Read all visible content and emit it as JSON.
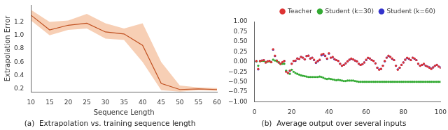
{
  "chart_data": [
    {
      "type": "line",
      "title": "(a)  Extrapolation vs. training sequence length",
      "xlabel": "Sequence Length",
      "ylabel": "Extrapolation Error",
      "x": [
        10,
        15,
        20,
        25,
        30,
        35,
        40,
        45,
        50,
        55,
        60
      ],
      "series": [
        {
          "type": "line",
          "color": "#c05020",
          "values": [
            1.3,
            1.08,
            1.15,
            1.18,
            1.05,
            1.02,
            0.85,
            0.28,
            0.19,
            0.2,
            0.19
          ]
        },
        {
          "type": "area",
          "color": "#f0a878",
          "upper": [
            1.38,
            1.2,
            1.22,
            1.32,
            1.18,
            1.1,
            1.18,
            0.6,
            0.25,
            0.22,
            0.21
          ],
          "lower": [
            1.22,
            1.0,
            1.08,
            1.1,
            0.95,
            0.93,
            0.6,
            0.18,
            0.16,
            0.18,
            0.17
          ]
        }
      ],
      "xlim": [
        10,
        60
      ],
      "xticks": [
        10,
        15,
        20,
        25,
        30,
        35,
        40,
        45,
        50,
        55,
        60
      ],
      "ylim": [
        0.15,
        1.45
      ],
      "yticks": [
        0.2,
        0.4,
        0.6,
        0.8,
        {
          "value": 1.0,
          "label": "1.0"
        },
        1.2
      ],
      "grid": false,
      "legend": false
    },
    {
      "type": "scatter",
      "title": "(b)  Average output over several inputs",
      "x": [
        1,
        2,
        3,
        4,
        5,
        6,
        7,
        8,
        9,
        10,
        11,
        12,
        13,
        14,
        15,
        16,
        17,
        18,
        19,
        20,
        21,
        22,
        23,
        24,
        25,
        26,
        27,
        28,
        29,
        30,
        31,
        32,
        33,
        34,
        35,
        36,
        37,
        38,
        39,
        40,
        41,
        42,
        43,
        44,
        45,
        46,
        47,
        48,
        49,
        50,
        51,
        52,
        53,
        54,
        55,
        56,
        57,
        58,
        59,
        60,
        61,
        62,
        63,
        64,
        65,
        66,
        67,
        68,
        69,
        70,
        71,
        72,
        73,
        74,
        75,
        76,
        77,
        78,
        79,
        80,
        81,
        82,
        83,
        84,
        85,
        86,
        87,
        88,
        89,
        90,
        91,
        92,
        93,
        94,
        95,
        96,
        97,
        98,
        99,
        100
      ],
      "series": [
        {
          "name": "Teacher",
          "color": "#dd3333",
          "marker": "dot",
          "values": [
            0.02,
            -0.18,
            0.02,
            0.03,
            0.04,
            -0.02,
            0.01,
            0.02,
            -0.01,
            0.31,
            0.15,
            0.03,
            -0.02,
            -0.05,
            -0.01,
            0.02,
            -0.25,
            -0.28,
            -0.22,
            -0.05,
            0.02,
            0.03,
            0.08,
            0.07,
            0.12,
            0.1,
            0.06,
            0.14,
            0.15,
            0.08,
            0.1,
            0.05,
            -0.02,
            0.02,
            0.05,
            0.18,
            0.2,
            0.15,
            0.08,
            0.21,
            0.1,
            0.12,
            0.07,
            0.04,
            0.02,
            -0.05,
            -0.1,
            -0.08,
            -0.04,
            0.01,
            0.05,
            0.08,
            0.06,
            0.03,
            0.01,
            -0.05,
            -0.08,
            -0.06,
            -0.02,
            0.05,
            0.1,
            0.08,
            0.04,
            0.02,
            -0.04,
            -0.15,
            -0.2,
            -0.18,
            -0.1,
            0.02,
            0.1,
            0.15,
            0.12,
            0.08,
            0.04,
            -0.1,
            -0.2,
            -0.15,
            -0.08,
            -0.02,
            0.05,
            0.1,
            0.08,
            0.04,
            0.1,
            0.08,
            0.04,
            -0.05,
            -0.1,
            -0.08,
            -0.05,
            -0.1,
            -0.12,
            -0.15,
            -0.18,
            -0.14,
            -0.1,
            -0.08,
            -0.12,
            -0.15
          ]
        },
        {
          "name": "Student (k=30)",
          "color": "#33aa33",
          "marker": "dot",
          "values": [
            0.01,
            -0.1,
            0.01,
            0.02,
            0.02,
            -0.01,
            0.0,
            0.01,
            -0.01,
            0.05,
            0.03,
            0.01,
            -0.01,
            -0.06,
            -0.05,
            -0.05,
            -0.22,
            -0.28,
            -0.3,
            -0.2,
            -0.25,
            -0.28,
            -0.3,
            -0.32,
            -0.34,
            -0.35,
            -0.36,
            -0.37,
            -0.38,
            -0.38,
            -0.38,
            -0.38,
            -0.38,
            -0.38,
            -0.37,
            -0.38,
            -0.4,
            -0.42,
            -0.43,
            -0.42,
            -0.43,
            -0.44,
            -0.45,
            -0.46,
            -0.45,
            -0.46,
            -0.47,
            -0.48,
            -0.48,
            -0.47,
            -0.47,
            -0.47,
            -0.47,
            -0.48,
            -0.49,
            -0.5,
            -0.5,
            -0.5,
            -0.5,
            -0.5,
            -0.5,
            -0.5,
            -0.5,
            -0.5,
            -0.5,
            -0.5,
            -0.5,
            -0.5,
            -0.5,
            -0.5,
            -0.5,
            -0.5,
            -0.5,
            -0.5,
            -0.5,
            -0.5,
            -0.5,
            -0.5,
            -0.5,
            -0.5,
            -0.5,
            -0.5,
            -0.5,
            -0.5,
            -0.5,
            -0.5,
            -0.5,
            -0.5,
            -0.5,
            -0.5,
            -0.5,
            -0.5,
            -0.5,
            -0.5,
            -0.5,
            -0.5,
            -0.5,
            -0.5,
            -0.5,
            -0.5
          ]
        },
        {
          "name": "Student (k=60)",
          "color": "#3333cc",
          "marker": "dot",
          "values": [
            0.01,
            -0.19,
            0.02,
            0.03,
            0.04,
            -0.02,
            0.01,
            0.02,
            -0.01,
            0.3,
            0.14,
            0.03,
            -0.02,
            -0.05,
            -0.02,
            0.02,
            -0.24,
            -0.28,
            -0.23,
            -0.05,
            0.02,
            0.02,
            0.08,
            0.07,
            0.12,
            0.1,
            0.06,
            0.14,
            0.15,
            0.08,
            0.1,
            0.04,
            -0.03,
            0.01,
            0.04,
            0.16,
            0.18,
            0.14,
            0.07,
            0.2,
            0.1,
            0.11,
            0.06,
            0.04,
            0.02,
            -0.05,
            -0.1,
            -0.08,
            -0.04,
            0.01,
            0.05,
            0.07,
            0.06,
            0.03,
            0.01,
            -0.05,
            -0.08,
            -0.06,
            -0.02,
            0.04,
            0.09,
            0.08,
            0.04,
            0.02,
            -0.04,
            -0.15,
            -0.19,
            -0.18,
            -0.1,
            0.01,
            0.1,
            0.14,
            0.12,
            0.07,
            0.04,
            -0.1,
            -0.19,
            -0.15,
            -0.08,
            -0.02,
            0.05,
            0.09,
            0.07,
            0.04,
            0.1,
            0.07,
            0.04,
            -0.05,
            -0.1,
            -0.08,
            -0.06,
            -0.1,
            -0.12,
            -0.14,
            -0.17,
            -0.14,
            -0.1,
            -0.08,
            -0.12,
            -0.14
          ]
        }
      ],
      "xlim": [
        0,
        100
      ],
      "xticks": [
        0,
        20,
        40,
        60,
        80,
        100
      ],
      "ylim": [
        -1.0,
        1.0
      ],
      "yticks": [
        {
          "value": -1.0,
          "label": "−1.00"
        },
        {
          "value": -0.75,
          "label": "−0.75"
        },
        {
          "value": -0.5,
          "label": "−0.50"
        },
        {
          "value": -0.25,
          "label": "−0.25"
        },
        {
          "value": 0.0,
          "label": "0.00"
        },
        0.25,
        {
          "value": 0.5,
          "label": "0.50"
        },
        0.75,
        {
          "value": 1.0,
          "label": "1.00"
        }
      ],
      "grid": false,
      "legend": "upper right"
    }
  ]
}
